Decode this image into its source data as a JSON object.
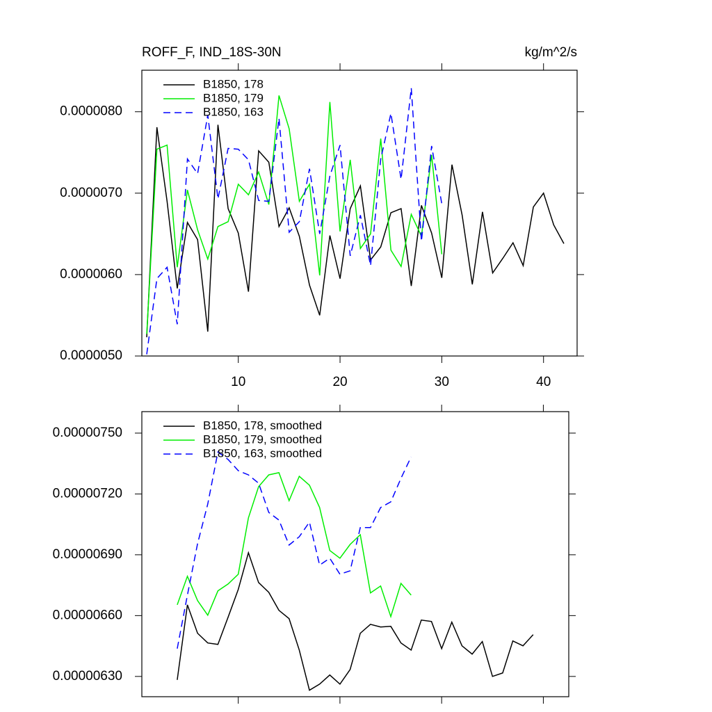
{
  "chart_data": [
    {
      "type": "line",
      "title": "ROFF_F, IND_18S-30N",
      "units": "kg/m^2/s",
      "x": [
        1,
        2,
        3,
        4,
        5,
        6,
        7,
        8,
        9,
        10,
        11,
        12,
        13,
        14,
        15,
        16,
        17,
        18,
        19,
        20,
        21,
        22,
        23,
        24,
        25,
        26,
        27,
        28,
        29,
        30,
        31,
        32,
        33,
        34,
        35,
        36,
        37,
        38,
        39,
        40,
        41,
        42
      ],
      "xlim": [
        0.52,
        43.3
      ],
      "xticks": [
        10,
        20,
        30,
        40
      ],
      "ylim": [
        5e-06,
        8.51e-06
      ],
      "yticks": [
        {
          "value": 5e-06,
          "label": "0.0000050"
        },
        {
          "value": 6e-06,
          "label": "0.0000060"
        },
        {
          "value": 7e-06,
          "label": "0.0000070"
        },
        {
          "value": 8e-06,
          "label": "0.0000080"
        }
      ],
      "series": [
        {
          "name": "B1850, 178",
          "color": "#000000",
          "dashed": false,
          "values": [
            5.23e-06,
            7.81e-06,
            6.9e-06,
            5.83e-06,
            6.64e-06,
            6.43e-06,
            5.3e-06,
            7.84e-06,
            6.81e-06,
            6.51e-06,
            5.79e-06,
            7.52e-06,
            7.38e-06,
            6.59e-06,
            6.82e-06,
            6.47e-06,
            5.87e-06,
            5.5e-06,
            6.48e-06,
            5.95e-06,
            6.81e-06,
            7.09e-06,
            6.18e-06,
            6.34e-06,
            6.76e-06,
            6.81e-06,
            5.86e-06,
            6.85e-06,
            6.51e-06,
            5.96e-06,
            7.35e-06,
            6.73e-06,
            5.88e-06,
            6.77e-06,
            6.02e-06,
            6.2e-06,
            6.39e-06,
            6.11e-06,
            6.83e-06,
            7e-06,
            6.61e-06,
            6.38e-06
          ]
        },
        {
          "name": "B1850, 179",
          "color": "#00ee00",
          "dashed": false,
          "values": [
            5.27e-06,
            7.54e-06,
            7.59e-06,
            6.09e-06,
            7.04e-06,
            6.55e-06,
            6.19e-06,
            6.59e-06,
            6.65e-06,
            7.11e-06,
            6.98e-06,
            7.26e-06,
            6.86e-06,
            8.2e-06,
            7.79e-06,
            6.9e-06,
            7.11e-06,
            5.99e-06,
            8.12e-06,
            6.53e-06,
            7.41e-06,
            6.32e-06,
            6.5e-06,
            7.67e-06,
            6.3e-06,
            6.1e-06,
            6.74e-06,
            6.47e-06,
            7.47e-06,
            6.25e-06,
            null,
            null,
            null,
            null,
            null,
            null,
            null,
            null,
            null,
            null,
            null,
            null
          ]
        },
        {
          "name": "B1850, 163",
          "color": "#0000ff",
          "dashed": true,
          "values": [
            5.02e-06,
            5.95e-06,
            6.09e-06,
            5.39e-06,
            7.42e-06,
            7.24e-06,
            7.96e-06,
            6.93e-06,
            7.55e-06,
            7.54e-06,
            7.41e-06,
            6.91e-06,
            6.9e-06,
            7.92e-06,
            6.52e-06,
            6.65e-06,
            7.3e-06,
            6.5e-06,
            7.21e-06,
            7.59e-06,
            6.23e-06,
            6.73e-06,
            6.11e-06,
            7.42e-06,
            7.98e-06,
            7.17e-06,
            8.29e-06,
            6.41e-06,
            7.58e-06,
            6.87e-06,
            null,
            null,
            null,
            null,
            null,
            null,
            null,
            null,
            null,
            null,
            null,
            null
          ]
        }
      ]
    },
    {
      "type": "line",
      "x": [
        4,
        5,
        6,
        7,
        8,
        9,
        10,
        11,
        12,
        13,
        14,
        15,
        16,
        17,
        18,
        19,
        20,
        21,
        22,
        23,
        24,
        25,
        26,
        27,
        28,
        29,
        30,
        31,
        32,
        33,
        34,
        35,
        36,
        37,
        38,
        39
      ],
      "xlim": [
        0.52,
        42.5
      ],
      "xticks": [
        10,
        20,
        30,
        40
      ],
      "ylim": [
        6.2e-06,
        7.606e-06
      ],
      "yticks": [
        {
          "value": 6.3e-06,
          "label": "0.00000630"
        },
        {
          "value": 6.6e-06,
          "label": "0.00000660"
        },
        {
          "value": 6.9e-06,
          "label": "0.00000690"
        },
        {
          "value": 7.2e-06,
          "label": "0.00000720"
        },
        {
          "value": 7.5e-06,
          "label": "0.00000750"
        }
      ],
      "series": [
        {
          "name": "B1850, 178, smoothed",
          "color": "#000000",
          "dashed": false,
          "values": [
            6.283e-06,
            6.653e-06,
            6.513e-06,
            6.465e-06,
            6.458e-06,
            6.592e-06,
            6.729e-06,
            6.91e-06,
            6.763e-06,
            6.715e-06,
            6.626e-06,
            6.585e-06,
            6.43e-06,
            6.232e-06,
            6.262e-06,
            6.307e-06,
            6.262e-06,
            6.334e-06,
            6.513e-06,
            6.557e-06,
            6.544e-06,
            6.547e-06,
            6.465e-06,
            6.43e-06,
            6.578e-06,
            6.571e-06,
            6.437e-06,
            6.568e-06,
            6.451e-06,
            6.41e-06,
            6.472e-06,
            6.3e-06,
            6.317e-06,
            6.475e-06,
            6.451e-06,
            6.506e-06
          ]
        },
        {
          "name": "B1850, 179, smoothed",
          "color": "#00ee00",
          "dashed": false,
          "values": [
            6.653e-06,
            6.794e-06,
            6.674e-06,
            6.602e-06,
            6.722e-06,
            6.756e-06,
            6.804e-06,
            7.082e-06,
            7.236e-06,
            7.294e-06,
            7.305e-06,
            7.167e-06,
            7.287e-06,
            7.243e-06,
            7.133e-06,
            6.921e-06,
            6.883e-06,
            6.951e-06,
            6.999e-06,
            6.712e-06,
            6.746e-06,
            6.595e-06,
            6.759e-06,
            6.701e-06,
            null,
            null,
            null,
            null,
            null,
            null,
            null,
            null,
            null,
            null,
            null,
            null
          ]
        },
        {
          "name": "B1850, 163, smoothed",
          "color": "#0000ff",
          "dashed": true,
          "values": [
            6.437e-06,
            6.701e-06,
            6.955e-06,
            7.15e-06,
            7.407e-06,
            7.37e-06,
            7.315e-06,
            7.294e-06,
            7.253e-06,
            7.109e-06,
            7.071e-06,
            6.948e-06,
            6.989e-06,
            7.061e-06,
            6.849e-06,
            6.883e-06,
            6.804e-06,
            6.821e-06,
            7.034e-06,
            7.034e-06,
            7.133e-06,
            7.161e-06,
            7.277e-06,
            7.383e-06,
            null,
            null,
            null,
            null,
            null,
            null,
            null,
            null,
            null,
            null,
            null,
            null
          ]
        }
      ]
    }
  ]
}
